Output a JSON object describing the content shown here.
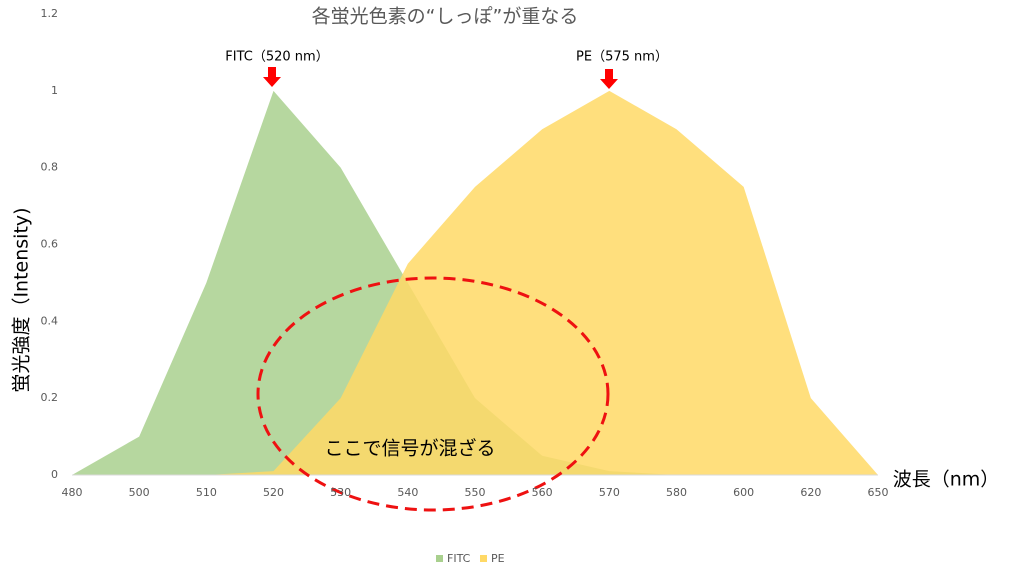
{
  "chart_data": {
    "type": "area",
    "title": "各蛍光色素の“しっぽ”が重なる",
    "y_label": "蛍光強度（Intensity)",
    "x_label": "波長（nm）",
    "annotations": [
      "FITC（520 nm）",
      "PE（575 nm）",
      "ここで信号が混ざる"
    ],
    "categories": [
      "480",
      "500",
      "510",
      "520",
      "530",
      "540",
      "550",
      "560",
      "570",
      "580",
      "600",
      "620",
      "650"
    ],
    "series": [
      {
        "name": "FITC",
        "color": "#a9d08e",
        "values": [
          0,
          0.1,
          0.5,
          1,
          0.8,
          0.5,
          0.2,
          0.05,
          0.01,
          0,
          0,
          0,
          0
        ]
      },
      {
        "name": "PE",
        "color": "#ffd966",
        "values": [
          0,
          0,
          0,
          0.01,
          0.2,
          0.55,
          0.75,
          0.9,
          1,
          0.9,
          0.75,
          0.2,
          0
        ]
      }
    ],
    "ylim": [
      0,
      1.2
    ],
    "yticks": [
      0,
      0.2,
      0.4,
      0.6,
      0.8,
      1,
      1.2
    ],
    "grid": false,
    "legend": "bottom"
  }
}
